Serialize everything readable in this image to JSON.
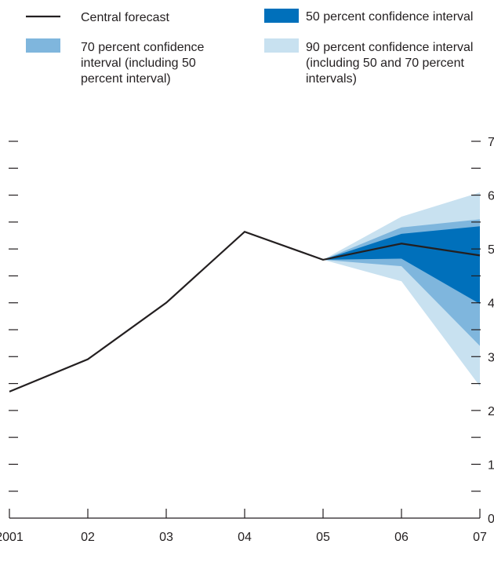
{
  "chart_data": {
    "type": "area",
    "title": "",
    "xlabel": "",
    "ylabel": "",
    "x_tick_labels": [
      "2001",
      "02",
      "03",
      "04",
      "05",
      "06",
      "07"
    ],
    "y_tick_labels": [
      "0",
      "1",
      "2",
      "3",
      "4",
      "5",
      "6",
      "7"
    ],
    "ylim": [
      0,
      7
    ],
    "y_axis_side": "right",
    "grid": false,
    "legend_placement": "top",
    "x": [
      2001,
      2002,
      2003,
      2004,
      2005,
      2006,
      2007
    ],
    "series": [
      {
        "name": "Central forecast",
        "kind": "line",
        "color": "#231f20",
        "values": [
          2.35,
          2.95,
          4.0,
          5.32,
          4.8,
          5.1,
          4.88
        ]
      }
    ],
    "bands": [
      {
        "name": "90 percent confidence interval (including 50 and 70 percent intervals)",
        "color": "#c8e1f0",
        "x": [
          2005,
          2006,
          2007
        ],
        "lower": [
          4.8,
          4.4,
          2.45
        ],
        "upper": [
          4.8,
          5.6,
          6.05
        ]
      },
      {
        "name": "70 percent confidence interval (including 50 percent interval)",
        "color": "#7fb6dd",
        "x": [
          2005,
          2006,
          2007
        ],
        "lower": [
          4.8,
          4.68,
          3.2
        ],
        "upper": [
          4.8,
          5.4,
          5.55
        ]
      },
      {
        "name": "50 percent confidence interval",
        "color": "#0070bb",
        "x": [
          2005,
          2006,
          2007
        ],
        "lower": [
          4.8,
          4.82,
          3.98
        ],
        "upper": [
          4.8,
          5.28,
          5.42
        ]
      }
    ],
    "legend": [
      {
        "label_lines": [
          "Central forecast"
        ],
        "kind": "line",
        "color": "#231f20"
      },
      {
        "label_lines": [
          "50 percent confidence interval"
        ],
        "kind": "swatch",
        "color": "#0070bb"
      },
      {
        "label_lines": [
          "70 percent confidence",
          "interval (including 50",
          "percent interval)"
        ],
        "kind": "swatch",
        "color": "#7fb6dd"
      },
      {
        "label_lines": [
          "90 percent confidence interval",
          "(including 50 and 70 percent",
          "intervals)"
        ],
        "kind": "swatch",
        "color": "#c8e1f0"
      }
    ]
  }
}
